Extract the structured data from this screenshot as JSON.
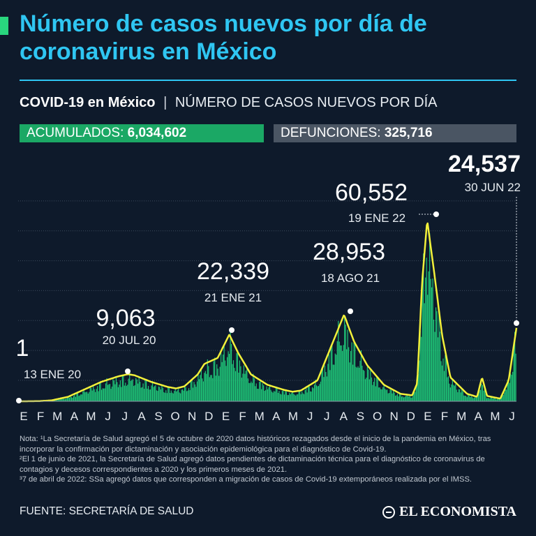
{
  "header": {
    "title": "Número de casos nuevos por día de coronavirus en México"
  },
  "subtitle": {
    "bold": "COVID-19 en México",
    "separator": "|",
    "light": "NÚMERO DE CASOS NUEVOS POR DÍA"
  },
  "stats": {
    "acumulados_label": "ACUMULADOS:",
    "acumulados_value": "6,034,602",
    "defunciones_label": "DEFUNCIONES:",
    "defunciones_value": "325,716"
  },
  "colors": {
    "background": "#0e1a2b",
    "title": "#2fc6f2",
    "bars": "#1fc779",
    "trend_line": "#f2f03a",
    "stat_green": "#1ba865",
    "stat_gray": "#4a5563"
  },
  "chart_data": {
    "type": "area",
    "x_tick_labels": [
      "E",
      "F",
      "M",
      "A",
      "M",
      "J",
      "J",
      "A",
      "S",
      "O",
      "N",
      "D",
      "E",
      "F",
      "M",
      "A",
      "M",
      "J",
      "J",
      "A",
      "S",
      "O",
      "N",
      "D",
      "E",
      "F",
      "M",
      "A",
      "M",
      "J"
    ],
    "peaks": [
      {
        "value": "1",
        "date": "13 ENE 20",
        "month_index": 0.4,
        "cases": 1
      },
      {
        "value": "9,063",
        "date": "20 JUL 20",
        "month_index": 6.6,
        "cases": 9063
      },
      {
        "value": "22,339",
        "date": "21 ENE 21",
        "month_index": 12.7,
        "cases": 22339
      },
      {
        "value": "28,953",
        "date": "18 AGO 21",
        "month_index": 19.6,
        "cases": 28953
      },
      {
        "value": "60,552",
        "date": "19 ENE 22",
        "month_index": 24.6,
        "cases": 60552
      },
      {
        "value": "24,537",
        "date": "30 JUN 22",
        "month_index": 29.97,
        "cases": 24537
      }
    ],
    "trend_line": [
      [
        0,
        0
      ],
      [
        0.4,
        1
      ],
      [
        1.2,
        50
      ],
      [
        2,
        300
      ],
      [
        3,
        1500
      ],
      [
        4,
        4000
      ],
      [
        5,
        6500
      ],
      [
        6,
        8300
      ],
      [
        6.6,
        9063
      ],
      [
        7,
        8700
      ],
      [
        8,
        6500
      ],
      [
        9,
        4800
      ],
      [
        9.5,
        4300
      ],
      [
        10,
        5000
      ],
      [
        10.8,
        9000
      ],
      [
        11.2,
        12500
      ],
      [
        12,
        14500
      ],
      [
        12.7,
        22339
      ],
      [
        13.2,
        16500
      ],
      [
        14,
        9000
      ],
      [
        15,
        5500
      ],
      [
        16,
        3800
      ],
      [
        16.5,
        3200
      ],
      [
        17,
        3600
      ],
      [
        18,
        7000
      ],
      [
        18.8,
        18000
      ],
      [
        19.6,
        28953
      ],
      [
        20.2,
        20000
      ],
      [
        21,
        12000
      ],
      [
        22,
        5500
      ],
      [
        23,
        2500
      ],
      [
        23.7,
        2000
      ],
      [
        24,
        6000
      ],
      [
        24.3,
        40000
      ],
      [
        24.6,
        60552
      ],
      [
        25,
        44000
      ],
      [
        25.5,
        22000
      ],
      [
        26,
        8000
      ],
      [
        27,
        2500
      ],
      [
        27.6,
        1500
      ],
      [
        27.9,
        8000
      ],
      [
        28.2,
        1800
      ],
      [
        29,
        900
      ],
      [
        29.5,
        7000
      ],
      [
        29.97,
        24537
      ]
    ],
    "ylim": [
      0,
      70000
    ],
    "grid": true
  },
  "notes": [
    "Nota: ¹La Secretaría de Salud agregó el 5 de octubre de 2020 datos históricos rezagados desde el inicio de la pandemia en México, tras incorporar la confirmación por dictaminación y asociación epidemiológica para el diagnóstico de Covid-19.",
    "²El 1 de junio de 2021, la Secretaría de Salud agregó datos pendientes de dictaminación técnica para el diagnóstico de coronavirus de contagios y decesos correspondientes a 2020 y los primeros meses de 2021.",
    "³7 de abril de 2022: SSa agregó datos que corresponden a migración de casos de Covid-19 extemporáneos realizada por el IMSS."
  ],
  "footer": {
    "source": "FUENTE: SECRETARÍA DE SALUD",
    "brand": "EL ECONOMISTA",
    "brand_icon": "globe-icon"
  }
}
